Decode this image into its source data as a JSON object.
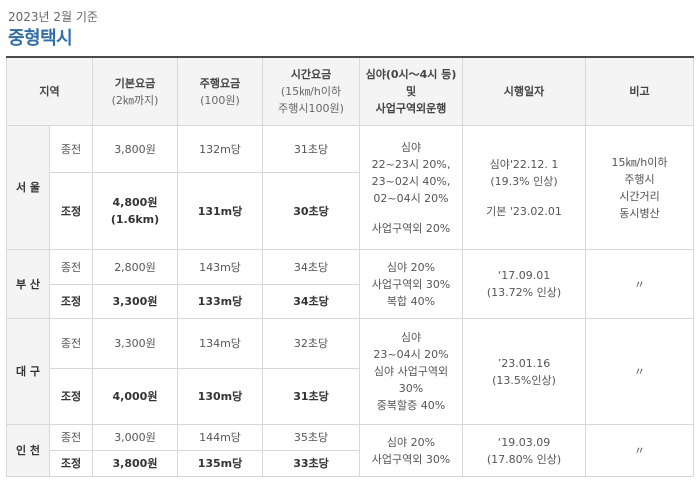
{
  "caption": "2023년 2월 기준",
  "title": "중형택시",
  "headers": {
    "region": "지역",
    "base_fare": "기본요금",
    "base_fare_sub": "(2㎞까지)",
    "distance_fare": "주행요금",
    "distance_fare_sub": "(100원)",
    "time_fare": "시간요금",
    "time_fare_sub1": "(15㎞/h이하",
    "time_fare_sub2": "주행시100원)",
    "late_night_1": "심야(0시～4시 등)",
    "late_night_2": "및",
    "late_night_3": "사업구역외운행",
    "effective_date": "시행일자",
    "note": "비고"
  },
  "rows": [
    {
      "region": "서 울",
      "before": {
        "label": "종전",
        "base": "3,800원",
        "distance": "132m당",
        "time": "31초당"
      },
      "after": {
        "label": "조정",
        "base": "4,800원",
        "base2": "(1.6km)",
        "distance": "131m당",
        "time": "30초당"
      },
      "surcharge": [
        "심야",
        "22~23시 20%,",
        "23~02시 40%,",
        "02~04시 20%",
        "",
        "사업구역외 20%"
      ],
      "date": [
        "심야'22.12. 1",
        "(19.3% 인상)",
        "",
        "기본 '23.02.01"
      ],
      "note": [
        "15㎞/h이하",
        "주행시",
        "시간거리",
        "동시병산"
      ]
    },
    {
      "region": "부 산",
      "before": {
        "label": "종전",
        "base": "2,800원",
        "distance": "143m당",
        "time": "34초당"
      },
      "after": {
        "label": "조정",
        "base": "3,300원",
        "distance": "133m당",
        "time": "34초당"
      },
      "surcharge": [
        "심야 20%",
        "사업구역외 30%",
        "복합 40%"
      ],
      "date": [
        "‘17.09.01",
        "(13.72% 인상)"
      ],
      "note": [
        "〃"
      ]
    },
    {
      "region": "대 구",
      "before": {
        "label": "종전",
        "base": "3,300원",
        "distance": "134m당",
        "time": "32초당"
      },
      "after": {
        "label": "조정",
        "base": "4,000원",
        "distance": "130m당",
        "time": "31초당"
      },
      "surcharge": [
        "심야",
        "23~04시 20%",
        "심야 사업구역외",
        "30%",
        "중복할증 40%"
      ],
      "date": [
        "’23.01.16",
        "(13.5%인상)"
      ],
      "note": [
        "〃"
      ]
    },
    {
      "region": "인 천",
      "before": {
        "label": "종전",
        "base": "3,000원",
        "distance": "144m당",
        "time": "35초당"
      },
      "after": {
        "label": "조정",
        "base": "3,800원",
        "distance": "135m당",
        "time": "33초당"
      },
      "surcharge": [
        "심야 20%",
        "사업구역외 30%"
      ],
      "date": [
        "‘19.03.09",
        "(17.80% 인상)"
      ],
      "note": [
        "〃"
      ]
    }
  ]
}
